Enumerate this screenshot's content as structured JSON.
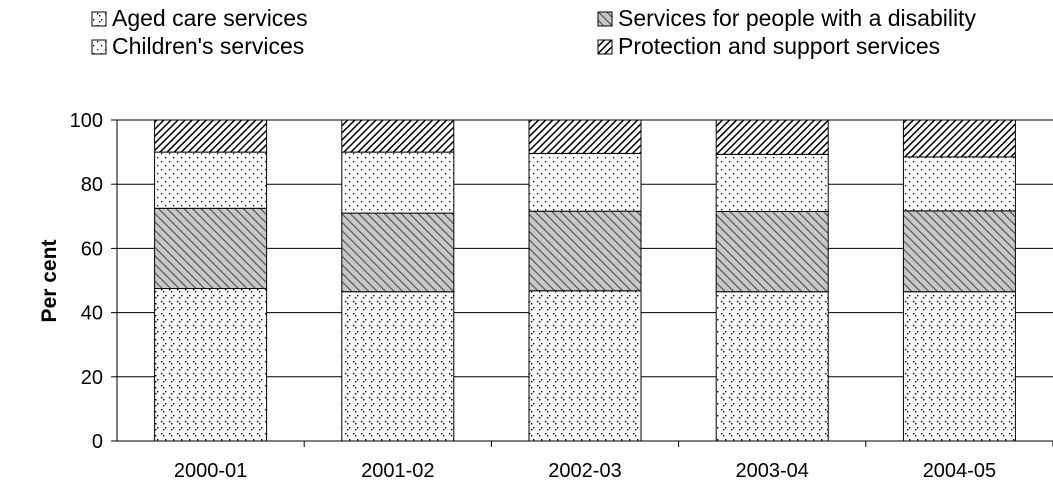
{
  "chart_data": {
    "type": "bar",
    "stacked": true,
    "categories": [
      "2000-01",
      "2001-02",
      "2002-03",
      "2003-04",
      "2004-05"
    ],
    "series": [
      {
        "name": "Aged care services",
        "values": [
          47.5,
          46.5,
          46.8,
          46.5,
          46.5
        ]
      },
      {
        "name": "Services for people with a disability",
        "values": [
          25.0,
          24.5,
          24.8,
          25.0,
          25.2
        ]
      },
      {
        "name": "Children's services",
        "values": [
          17.5,
          19.0,
          18.0,
          17.8,
          16.8
        ]
      },
      {
        "name": "Protection and support services",
        "values": [
          10.0,
          10.0,
          10.4,
          10.7,
          11.5
        ]
      }
    ],
    "title": "",
    "xlabel": "",
    "ylabel": "Per cent",
    "ylim": [
      0,
      100
    ],
    "yticks": [
      0,
      20,
      40,
      60,
      80,
      100
    ],
    "grid": true,
    "legend_position": "top"
  }
}
